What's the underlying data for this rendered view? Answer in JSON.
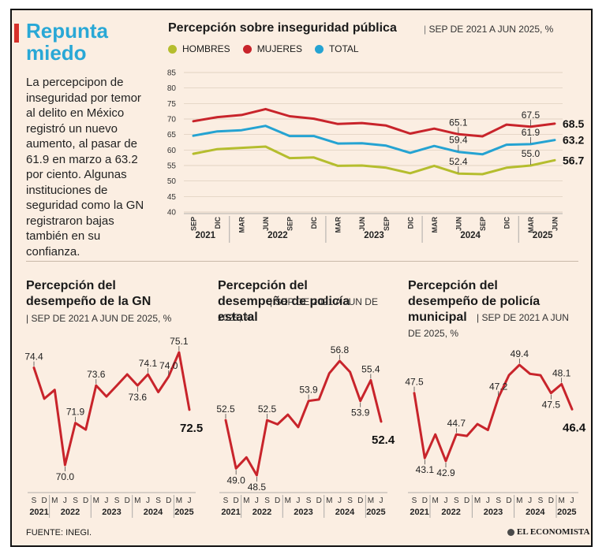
{
  "headline": "Repunta miedo",
  "intro": "La percepcipon de inseguridad por temor al delito en México registró un nuevo aumento, al pasar de 61.9 en marzo a 63.2 por ciento. Algunas instituciones de seguridad como la GN registraron bajas también en su confianza.",
  "source": "FUENTE: INEGI.",
  "brand": "EL ECONOMISTA",
  "colors": {
    "hombres": "#b5bd2e",
    "mujeres": "#c8242b",
    "total": "#25a3d2",
    "accent": "#d6312b",
    "headline": "#29a8d6",
    "background": "#fbeee2"
  },
  "chart_data": [
    {
      "type": "line",
      "title": "Percepción sobre inseguridad pública",
      "subtitle": "SEP DE 2021 A JUN 2025, %",
      "ylim": [
        40,
        85
      ],
      "yticks": [
        40,
        45,
        50,
        55,
        60,
        65,
        70,
        75,
        80,
        85
      ],
      "x": [
        "SEP",
        "DIC",
        "MAR",
        "JUN",
        "SEP",
        "DIC",
        "MAR",
        "JUN",
        "SEP",
        "DIC",
        "MAR",
        "JUN",
        "SEP",
        "DIC",
        "MAR",
        "JUN"
      ],
      "years": [
        {
          "label": "2021",
          "from": 0,
          "to": 1
        },
        {
          "label": "2022",
          "from": 2,
          "to": 5
        },
        {
          "label": "2023",
          "from": 6,
          "to": 9
        },
        {
          "label": "2024",
          "from": 10,
          "to": 13
        },
        {
          "label": "2025",
          "from": 14,
          "to": 15
        }
      ],
      "series": [
        {
          "name": "HOMBRES",
          "color": "#b5bd2e",
          "values": [
            58.8,
            60.3,
            60.7,
            61.1,
            57.4,
            57.6,
            54.9,
            55.0,
            54.3,
            52.5,
            54.9,
            52.4,
            52.2,
            54.3,
            55.0,
            56.7
          ]
        },
        {
          "name": "MUJERES",
          "color": "#c8242b",
          "values": [
            69.3,
            70.6,
            71.3,
            73.2,
            70.9,
            70.1,
            68.4,
            68.7,
            67.9,
            65.3,
            66.9,
            65.1,
            64.4,
            68.2,
            67.5,
            68.5
          ]
        },
        {
          "name": "TOTAL",
          "color": "#25a3d2",
          "values": [
            64.6,
            66.0,
            66.4,
            67.8,
            64.5,
            64.5,
            62.1,
            62.2,
            61.4,
            59.1,
            61.3,
            59.4,
            58.6,
            61.7,
            61.9,
            63.2
          ]
        }
      ],
      "labels": [
        {
          "series": "MUJERES",
          "index": 11,
          "text": "65.1"
        },
        {
          "series": "TOTAL",
          "index": 11,
          "text": "59.4"
        },
        {
          "series": "HOMBRES",
          "index": 11,
          "text": "52.4"
        },
        {
          "series": "MUJERES",
          "index": 14,
          "text": "67.5"
        },
        {
          "series": "TOTAL",
          "index": 14,
          "text": "61.9"
        },
        {
          "series": "HOMBRES",
          "index": 14,
          "text": "55.0"
        },
        {
          "series": "MUJERES",
          "index": 15,
          "text": "68.5",
          "bold": true
        },
        {
          "series": "TOTAL",
          "index": 15,
          "text": "63.2",
          "bold": true
        },
        {
          "series": "HOMBRES",
          "index": 15,
          "text": "56.7",
          "bold": true
        }
      ]
    },
    {
      "type": "line",
      "title": "Percepción del desempeño de la GN",
      "subtitle": "SEP DE 2021 A JUN DE 2025, %",
      "x": [
        "S",
        "D",
        "M",
        "J",
        "S",
        "D",
        "M",
        "J",
        "S",
        "D",
        "M",
        "J",
        "S",
        "D",
        "M",
        "J"
      ],
      "years": [
        {
          "label": "2021",
          "from": 0,
          "to": 1
        },
        {
          "label": "2022",
          "from": 2,
          "to": 5
        },
        {
          "label": "2023",
          "from": 6,
          "to": 9
        },
        {
          "label": "2024",
          "from": 10,
          "to": 13
        },
        {
          "label": "2025",
          "from": 14,
          "to": 15
        }
      ],
      "color": "#c8242b",
      "values": [
        74.4,
        73.0,
        73.4,
        70.0,
        71.9,
        71.6,
        73.6,
        73.1,
        73.6,
        74.1,
        73.6,
        74.1,
        73.3,
        74.0,
        75.1,
        72.5
      ],
      "labels": [
        {
          "index": 0,
          "text": "74.4"
        },
        {
          "index": 3,
          "text": "70.0"
        },
        {
          "index": 4,
          "text": "71.9"
        },
        {
          "index": 6,
          "text": "73.6"
        },
        {
          "index": 10,
          "text": "73.6"
        },
        {
          "index": 11,
          "text": "74.1"
        },
        {
          "index": 13,
          "text": "74.0"
        },
        {
          "index": 14,
          "text": "75.1"
        },
        {
          "index": 15,
          "text": "72.5",
          "bold": true
        }
      ]
    },
    {
      "type": "line",
      "title": "Percepción del desempeño de policía estatal",
      "subtitle": "SEP DE 2021 A JUN DE 2025, %",
      "x": [
        "S",
        "D",
        "M",
        "J",
        "S",
        "D",
        "M",
        "J",
        "S",
        "D",
        "M",
        "J",
        "S",
        "D",
        "M",
        "J"
      ],
      "years": [
        {
          "label": "2021",
          "from": 0,
          "to": 1
        },
        {
          "label": "2022",
          "from": 2,
          "to": 5
        },
        {
          "label": "2023",
          "from": 6,
          "to": 9
        },
        {
          "label": "2024",
          "from": 10,
          "to": 13
        },
        {
          "label": "2025",
          "from": 14,
          "to": 15
        }
      ],
      "color": "#c8242b",
      "values": [
        52.5,
        49.0,
        49.8,
        48.5,
        52.5,
        52.2,
        52.9,
        52.0,
        53.9,
        54.0,
        55.9,
        56.8,
        56.0,
        53.9,
        55.4,
        52.4
      ],
      "labels": [
        {
          "index": 0,
          "text": "52.5"
        },
        {
          "index": 1,
          "text": "49.0"
        },
        {
          "index": 3,
          "text": "48.5"
        },
        {
          "index": 4,
          "text": "52.5"
        },
        {
          "index": 8,
          "text": "53.9"
        },
        {
          "index": 11,
          "text": "56.8"
        },
        {
          "index": 13,
          "text": "53.9"
        },
        {
          "index": 14,
          "text": "55.4"
        },
        {
          "index": 15,
          "text": "52.4",
          "bold": true
        }
      ]
    },
    {
      "type": "line",
      "title": "Percepción del desempeño de policía municipal",
      "subtitle": "SEP DE 2021 A JUN DE 2025, %",
      "x": [
        "S",
        "D",
        "M",
        "J",
        "S",
        "D",
        "M",
        "J",
        "S",
        "D",
        "M",
        "J",
        "S",
        "D",
        "M",
        "J"
      ],
      "years": [
        {
          "label": "2021",
          "from": 0,
          "to": 1
        },
        {
          "label": "2022",
          "from": 2,
          "to": 5
        },
        {
          "label": "2023",
          "from": 6,
          "to": 9
        },
        {
          "label": "2024",
          "from": 10,
          "to": 13
        },
        {
          "label": "2025",
          "from": 14,
          "to": 15
        }
      ],
      "color": "#c8242b",
      "values": [
        47.5,
        43.1,
        44.7,
        42.9,
        44.7,
        44.6,
        45.4,
        45.0,
        47.2,
        48.7,
        49.4,
        48.8,
        48.7,
        47.5,
        48.1,
        46.4
      ],
      "labels": [
        {
          "index": 0,
          "text": "47.5"
        },
        {
          "index": 1,
          "text": "43.1"
        },
        {
          "index": 3,
          "text": "42.9"
        },
        {
          "index": 4,
          "text": "44.7"
        },
        {
          "index": 8,
          "text": "47.2"
        },
        {
          "index": 10,
          "text": "49.4"
        },
        {
          "index": 13,
          "text": "47.5"
        },
        {
          "index": 14,
          "text": "48.1"
        },
        {
          "index": 15,
          "text": "46.4",
          "bold": true
        }
      ]
    }
  ]
}
